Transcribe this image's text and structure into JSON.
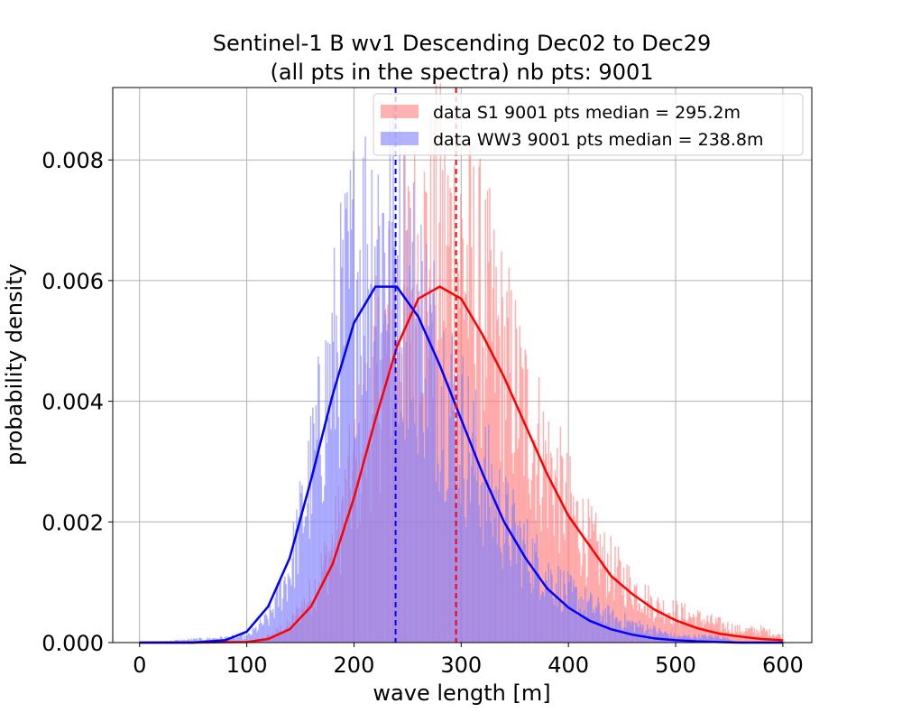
{
  "chart_data": {
    "type": "histogram",
    "title_line1": "Sentinel-1 B wv1 Descending Dec02 to Dec29",
    "title_line2": "(all pts in the spectra) nb pts: 9001",
    "xlabel": "wave length [m]",
    "ylabel": "probability density",
    "xlim": [
      -25,
      627
    ],
    "ylim": [
      0,
      0.0092
    ],
    "xticks": [
      0,
      100,
      200,
      300,
      400,
      500,
      600
    ],
    "xtick_labels": [
      "0",
      "100",
      "200",
      "300",
      "400",
      "500",
      "600"
    ],
    "yticks": [
      0,
      0.002,
      0.004,
      0.006,
      0.008
    ],
    "ytick_labels": [
      "0.000",
      "0.002",
      "0.004",
      "0.006",
      "0.008"
    ],
    "grid": true,
    "legend_position": "top-right",
    "series": [
      {
        "name": "data S1 9001 pts median = 295.2m",
        "kind": "histogram",
        "color": "#ff7f7f",
        "alpha": 0.6,
        "approx_bin_width": 1,
        "x": [
          0,
          100,
          120,
          140,
          160,
          180,
          200,
          220,
          240,
          260,
          280,
          300,
          320,
          340,
          360,
          380,
          400,
          420,
          440,
          460,
          480,
          500,
          520,
          540,
          560,
          580,
          600
        ],
        "density": [
          0,
          0,
          0.0001,
          0.0003,
          0.0008,
          0.0016,
          0.0028,
          0.0042,
          0.0055,
          0.0062,
          0.0065,
          0.0063,
          0.0055,
          0.0046,
          0.0037,
          0.0029,
          0.0022,
          0.0016,
          0.0012,
          0.0009,
          0.0006,
          0.0005,
          0.0004,
          0.0003,
          0.0002,
          0.0002,
          0.0001
        ]
      },
      {
        "name": "data WW3 9001 pts median = 238.8m",
        "kind": "histogram",
        "color": "#7f7fff",
        "alpha": 0.6,
        "approx_bin_width": 1,
        "x": [
          0,
          100,
          120,
          140,
          160,
          180,
          200,
          220,
          240,
          260,
          280,
          300,
          320,
          340,
          360,
          380,
          400,
          420,
          440,
          460,
          480,
          500,
          520,
          540,
          560,
          580,
          600
        ],
        "density": [
          0,
          0.0001,
          0.0004,
          0.0012,
          0.0028,
          0.0046,
          0.0061,
          0.0067,
          0.0063,
          0.0054,
          0.0044,
          0.0035,
          0.0027,
          0.002,
          0.0015,
          0.0011,
          0.0008,
          0.0006,
          0.0004,
          0.0003,
          0.0002,
          0.0001,
          0.0001,
          0.0001,
          0,
          0,
          0
        ]
      },
      {
        "kind": "line",
        "color": "#ff0000",
        "x": [
          0,
          50,
          100,
          120,
          140,
          160,
          180,
          200,
          220,
          240,
          260,
          280,
          300,
          320,
          340,
          360,
          380,
          400,
          420,
          440,
          460,
          480,
          500,
          520,
          540,
          560,
          580,
          600
        ],
        "y": [
          0,
          0,
          1e-05,
          6e-05,
          0.00022,
          0.0006,
          0.0013,
          0.0024,
          0.0037,
          0.0049,
          0.0057,
          0.0059,
          0.0057,
          0.0051,
          0.0044,
          0.0036,
          0.0028,
          0.0021,
          0.0016,
          0.0011,
          0.0008,
          0.00055,
          0.00037,
          0.00024,
          0.00015,
          0.0001,
          6e-05,
          4e-05
        ]
      },
      {
        "kind": "line",
        "color": "#0000ff",
        "x": [
          0,
          50,
          80,
          100,
          120,
          140,
          160,
          180,
          200,
          220,
          240,
          260,
          280,
          300,
          320,
          340,
          360,
          380,
          400,
          420,
          440,
          460,
          480,
          500,
          520,
          540,
          560,
          580,
          600
        ],
        "y": [
          0,
          0,
          4e-05,
          0.00018,
          0.0006,
          0.0014,
          0.0027,
          0.0041,
          0.0053,
          0.0059,
          0.0059,
          0.0054,
          0.0046,
          0.0037,
          0.0028,
          0.002,
          0.0014,
          0.0009,
          0.00058,
          0.00036,
          0.00022,
          0.00013,
          7e-05,
          4e-05,
          2e-05,
          1e-05,
          0,
          0,
          0
        ]
      }
    ],
    "median_lines": [
      {
        "x": 295.2,
        "color": "#ff0000",
        "style": "dashed"
      },
      {
        "x": 238.8,
        "color": "#0000ff",
        "style": "dashed"
      }
    ]
  }
}
